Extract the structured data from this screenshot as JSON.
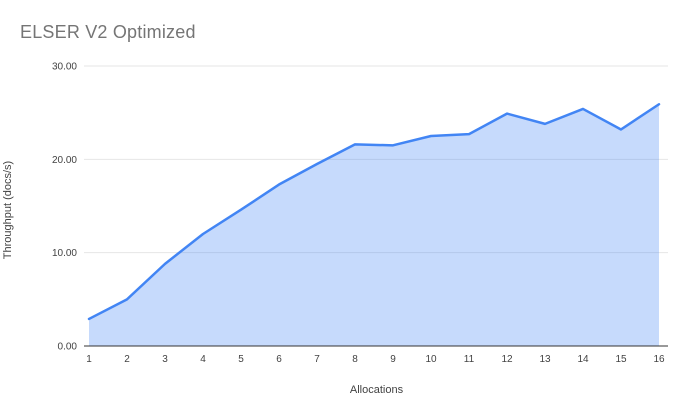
{
  "chart_data": {
    "type": "area",
    "title": "ELSER V2 Optimized",
    "xlabel": "Allocations",
    "ylabel": "Throughput (docs/s)",
    "x": [
      1,
      2,
      3,
      4,
      5,
      6,
      7,
      8,
      9,
      10,
      11,
      12,
      13,
      14,
      15,
      16
    ],
    "values": [
      2.9,
      5.0,
      8.8,
      12.0,
      14.6,
      17.3,
      19.5,
      21.6,
      21.5,
      22.5,
      22.7,
      24.9,
      23.8,
      25.4,
      23.2,
      25.9
    ],
    "ylim": [
      0,
      30
    ],
    "yticks": [
      0,
      10,
      20,
      30
    ],
    "ytick_labels": [
      "0.00",
      "10.00",
      "20.00",
      "30.00"
    ],
    "grid": "horizontal",
    "legend": "none",
    "colors": {
      "line": "#4285f4",
      "fill": "#4285f4",
      "fill_opacity": 0.3,
      "gridline": "#e6e6e6",
      "baseline": "#333333",
      "tick_text": "#424242",
      "title_text": "#757575",
      "background": "#ffffff"
    }
  }
}
